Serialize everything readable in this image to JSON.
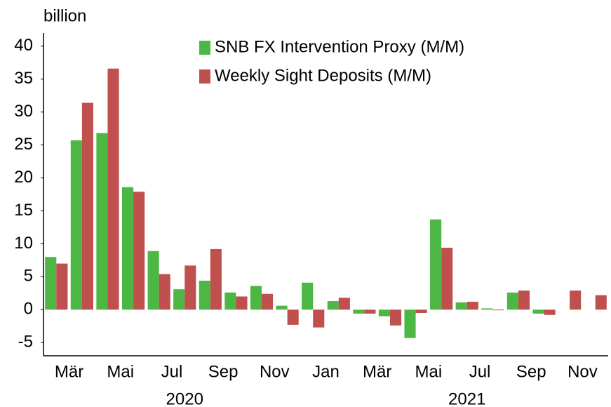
{
  "chart_data": {
    "type": "bar",
    "y_label": "billion",
    "categories": [
      null,
      "Mär",
      null,
      "Mai",
      null,
      "Jul",
      null,
      "Sep",
      null,
      "Nov",
      null,
      "Jan",
      null,
      "Mär",
      null,
      "Mai",
      null,
      "Jul",
      null,
      "Sep",
      null,
      "Nov"
    ],
    "years": [
      "2020",
      "2021"
    ],
    "series": [
      {
        "name": "SNB FX Intervention Proxy (M/M)",
        "color": "#4cb843",
        "values": [
          8.0,
          25.7,
          26.8,
          18.6,
          8.9,
          3.1,
          4.4,
          2.6,
          3.6,
          0.6,
          4.1,
          1.3,
          -0.6,
          -1.0,
          -4.3,
          13.7,
          1.1,
          0.2,
          2.6,
          -0.6,
          null,
          null
        ]
      },
      {
        "name": "Weekly Sight Deposits (M/M)",
        "color": "#c0504d",
        "values": [
          7.0,
          31.4,
          36.6,
          17.9,
          5.4,
          6.7,
          9.2,
          2.0,
          2.4,
          -2.3,
          -2.7,
          1.8,
          -0.6,
          -2.4,
          -0.5,
          9.4,
          1.2,
          -0.1,
          2.9,
          -0.8,
          2.9,
          2.2
        ]
      }
    ],
    "ylim": [
      -7,
      42
    ],
    "yticks": [
      -5,
      0,
      5,
      10,
      15,
      20,
      25,
      30,
      35,
      40
    ]
  }
}
